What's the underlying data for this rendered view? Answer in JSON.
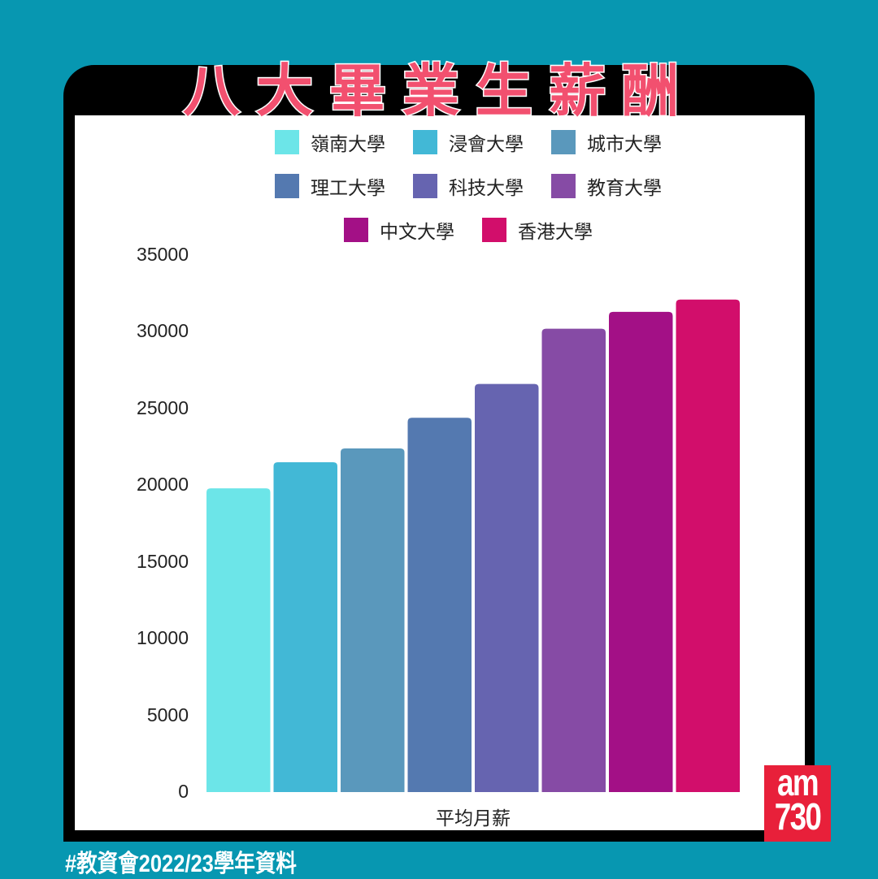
{
  "title": "八大畢業生薪酬",
  "footer": "#教資會2022/23學年資料",
  "logo": {
    "line1": "am",
    "line2": "730"
  },
  "chart_data": {
    "type": "bar",
    "title": "八大畢業生薪酬",
    "xlabel": "平均月薪",
    "ylabel": "",
    "ylim": [
      0,
      35000
    ],
    "yticks": [
      "0",
      "5000",
      "10000",
      "15000",
      "20000",
      "25000",
      "30000",
      "35000"
    ],
    "grid": false,
    "legend_position": "top",
    "categories": [
      "平均月薪"
    ],
    "series": [
      {
        "name": "嶺南大學",
        "values": [
          19800
        ],
        "color": "#6ce5e8"
      },
      {
        "name": "浸會大學",
        "values": [
          21500
        ],
        "color": "#42b8d6"
      },
      {
        "name": "城市大學",
        "values": [
          22400
        ],
        "color": "#5a98bc"
      },
      {
        "name": "理工大學",
        "values": [
          24400
        ],
        "color": "#5479b0"
      },
      {
        "name": "科技大學",
        "values": [
          26600
        ],
        "color": "#6664b0"
      },
      {
        "name": "教育大學",
        "values": [
          30200
        ],
        "color": "#864ba5"
      },
      {
        "name": "中文大學",
        "values": [
          31300
        ],
        "color": "#a31086"
      },
      {
        "name": "香港大學",
        "values": [
          32100
        ],
        "color": "#d20e6b"
      }
    ]
  }
}
